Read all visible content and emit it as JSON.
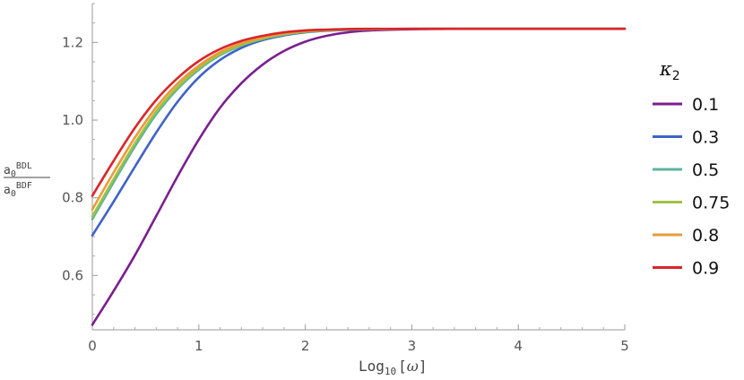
{
  "chart_data": {
    "type": "line",
    "xlabel": "Log",
    "xlabel_sub": "10",
    "xlabel_bracket_open": "[",
    "xlabel_var": "ω",
    "xlabel_bracket_close": "]",
    "ylabel_numerator": "a",
    "ylabel_numerator_sub": "0",
    "ylabel_numerator_sup": "BDL",
    "ylabel_denominator": "a",
    "ylabel_denominator_sub": "0",
    "ylabel_denominator_sup": "BDF",
    "legend_title": "κ",
    "legend_title_sub": "2",
    "legend_placement": "right",
    "grid": false,
    "xlim": [
      0,
      5
    ],
    "ylim": [
      0.46,
      1.3
    ],
    "x_ticks": [
      0,
      1,
      2,
      3,
      4,
      5
    ],
    "x_tick_labels": [
      "0",
      "1",
      "2",
      "3",
      "4",
      "5"
    ],
    "y_ticks": [
      0.6,
      0.8,
      1.0,
      1.2
    ],
    "y_tick_labels": [
      "0.6",
      "0.8",
      "1.0",
      "1.2"
    ],
    "series": [
      {
        "name": "0.1",
        "color": "#7b1f8e",
        "x": [
          0,
          0.2,
          0.4,
          0.6,
          0.8,
          1.0,
          1.2,
          1.4,
          1.6,
          1.8,
          2.0,
          2.2,
          2.5,
          3.0,
          3.5,
          4.0,
          5.0
        ],
        "y": [
          0.473,
          0.56,
          0.652,
          0.753,
          0.855,
          0.95,
          1.032,
          1.095,
          1.143,
          1.178,
          1.202,
          1.217,
          1.229,
          1.234,
          1.235,
          1.235,
          1.235
        ]
      },
      {
        "name": "0.3",
        "color": "#3e63c8",
        "x": [
          0,
          0.2,
          0.4,
          0.6,
          0.8,
          1.0,
          1.2,
          1.4,
          1.6,
          1.8,
          2.0,
          2.2,
          2.5,
          3.0,
          3.5,
          4.0,
          5.0
        ],
        "y": [
          0.703,
          0.79,
          0.88,
          0.968,
          1.047,
          1.11,
          1.155,
          1.186,
          1.206,
          1.218,
          1.226,
          1.23,
          1.233,
          1.235,
          1.235,
          1.235,
          1.235
        ]
      },
      {
        "name": "0.5",
        "color": "#5cb39c",
        "x": [
          0,
          0.2,
          0.4,
          0.6,
          0.8,
          1.0,
          1.2,
          1.4,
          1.6,
          1.8,
          2.0,
          2.2,
          2.5,
          3.0,
          3.5,
          4.0,
          5.0
        ],
        "y": [
          0.745,
          0.84,
          0.932,
          1.015,
          1.08,
          1.13,
          1.167,
          1.192,
          1.209,
          1.22,
          1.227,
          1.231,
          1.234,
          1.235,
          1.235,
          1.235,
          1.235
        ]
      },
      {
        "name": "0.75",
        "color": "#9fc242",
        "x": [
          0,
          0.2,
          0.4,
          0.6,
          0.8,
          1.0,
          1.2,
          1.4,
          1.6,
          1.8,
          2.0,
          2.2,
          2.5,
          3.0,
          3.5,
          4.0,
          5.0
        ],
        "y": [
          0.752,
          0.848,
          0.94,
          1.022,
          1.085,
          1.134,
          1.17,
          1.194,
          1.21,
          1.221,
          1.228,
          1.231,
          1.234,
          1.235,
          1.235,
          1.235,
          1.235
        ]
      },
      {
        "name": "0.8",
        "color": "#ea9a3a",
        "x": [
          0,
          0.2,
          0.4,
          0.6,
          0.8,
          1.0,
          1.2,
          1.4,
          1.6,
          1.8,
          2.0,
          2.2,
          2.5,
          3.0,
          3.5,
          4.0,
          5.0
        ],
        "y": [
          0.77,
          0.865,
          0.955,
          1.033,
          1.094,
          1.14,
          1.175,
          1.198,
          1.213,
          1.223,
          1.229,
          1.232,
          1.234,
          1.235,
          1.235,
          1.235,
          1.235
        ]
      },
      {
        "name": "0.9",
        "color": "#d8262a",
        "x": [
          0,
          0.2,
          0.4,
          0.6,
          0.8,
          1.0,
          1.2,
          1.4,
          1.6,
          1.8,
          2.0,
          2.2,
          2.5,
          3.0,
          3.5,
          4.0,
          5.0
        ],
        "y": [
          0.805,
          0.895,
          0.98,
          1.052,
          1.108,
          1.152,
          1.183,
          1.204,
          1.217,
          1.226,
          1.231,
          1.233,
          1.235,
          1.235,
          1.235,
          1.235,
          1.235
        ]
      }
    ]
  }
}
